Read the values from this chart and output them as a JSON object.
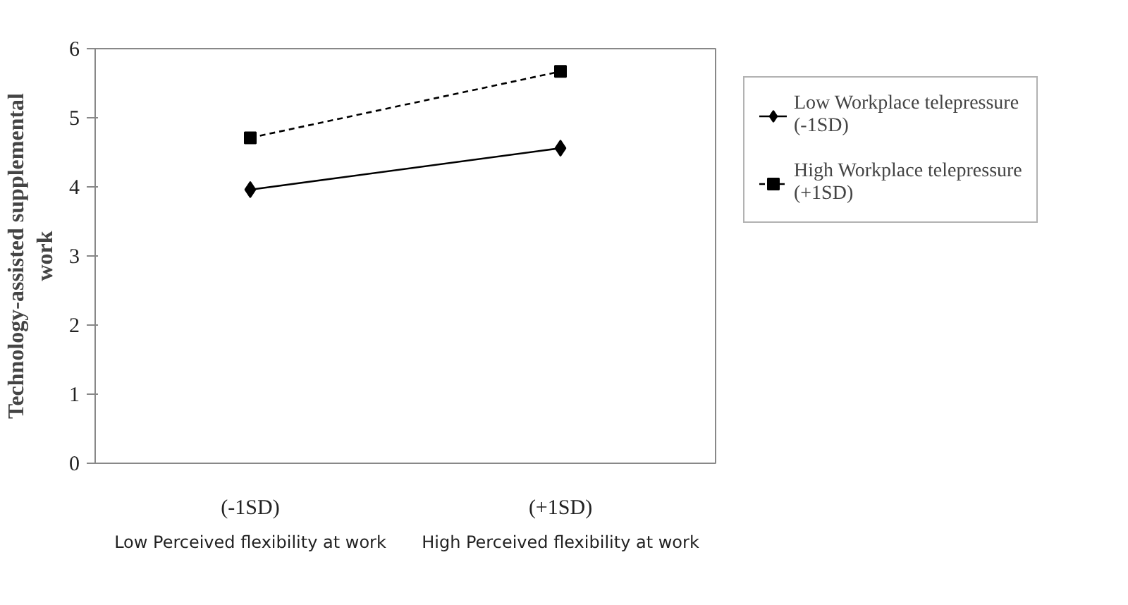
{
  "chart_data": {
    "type": "line",
    "ylabel": "Technology-assisted supplemental work",
    "categories": [
      "(-1SD)",
      "(+1SD)"
    ],
    "series": [
      {
        "name": "Low Workplace telepressure (-1SD)",
        "color": "#000000",
        "values": [
          3.96,
          4.56
        ],
        "marker": "diamond",
        "line_style": "solid"
      },
      {
        "name": "High Workplace telepressure (+1SD)",
        "color": "#000000",
        "values": [
          4.71,
          5.67
        ],
        "marker": "square",
        "line_style": "dashed"
      }
    ],
    "ylim": [
      0,
      6
    ],
    "yticks": [
      0,
      1,
      2,
      3,
      4,
      5,
      6
    ],
    "grid": false,
    "legend": "right",
    "annotations": [
      "Low Perceived flexibility at work",
      "High Perceived flexibility at work"
    ]
  }
}
